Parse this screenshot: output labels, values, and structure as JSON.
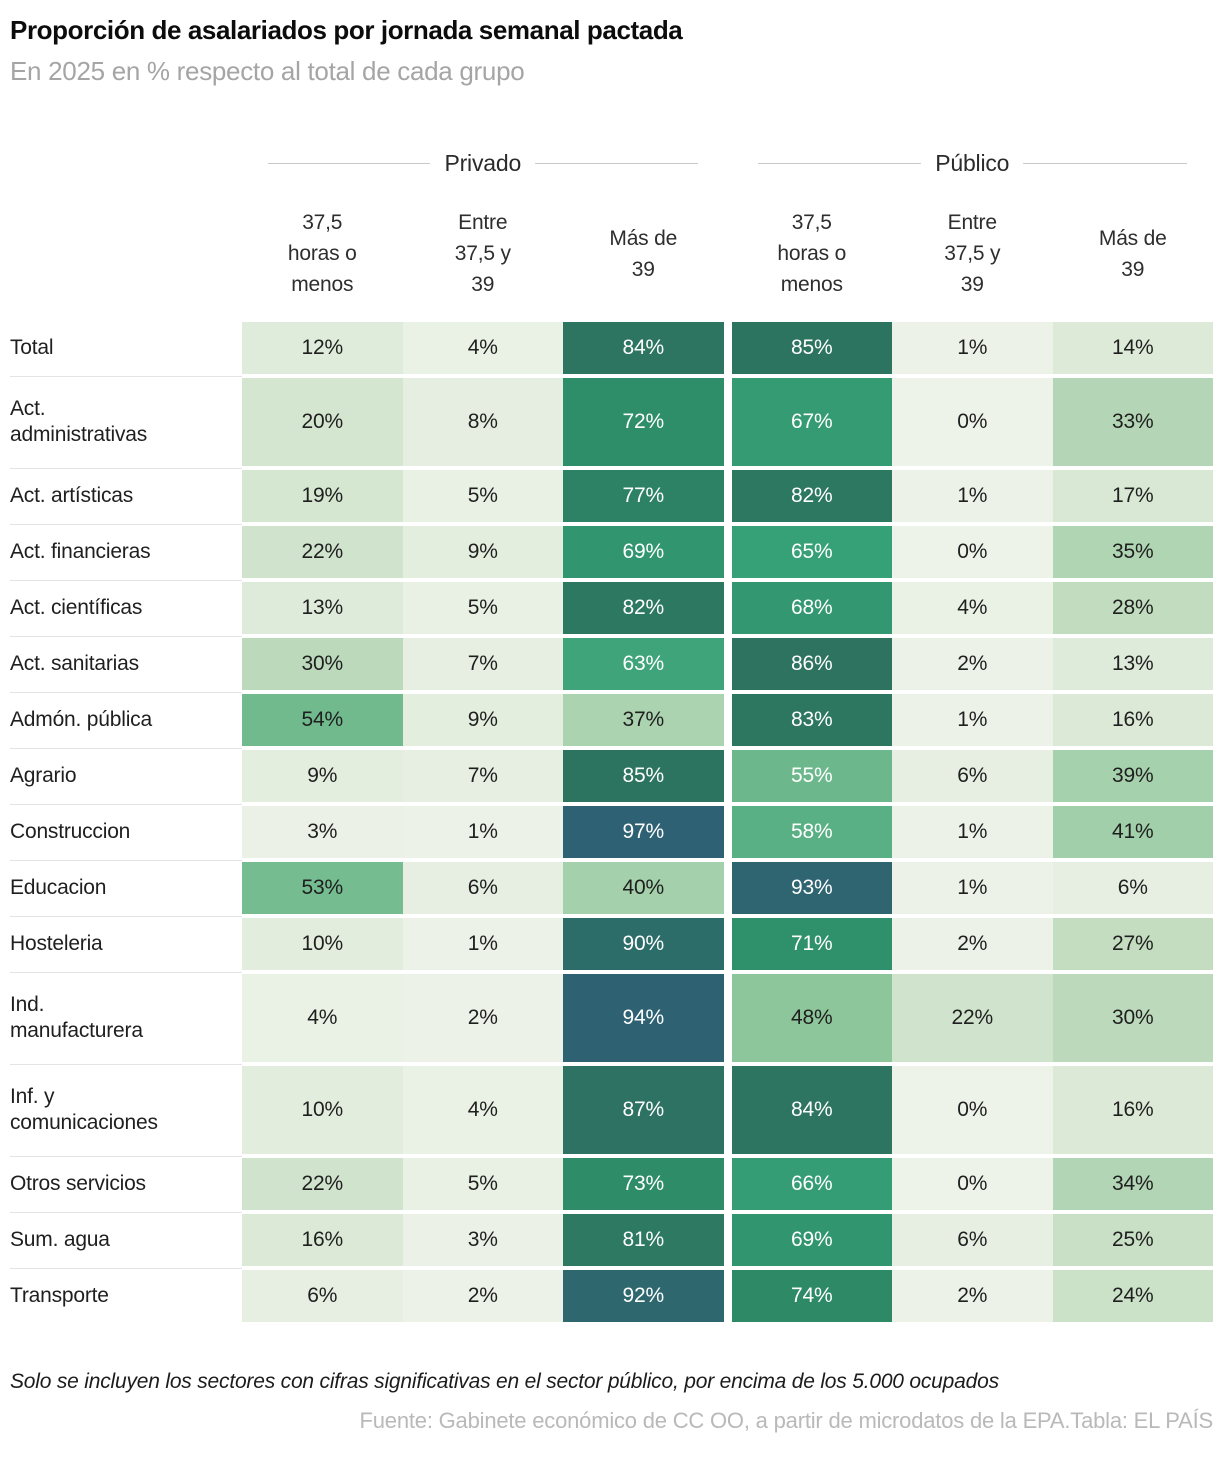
{
  "header": {
    "title": "Proporción de asalariados por jornada semanal pactada",
    "subtitle": "En 2025 en % respecto al total de cada grupo"
  },
  "groups": [
    {
      "label": "Privado"
    },
    {
      "label": "Público"
    }
  ],
  "table": {
    "col_headers": [
      "37,5\nhoras o\nmenos",
      "Entre\n37,5 y\n39",
      "Más de\n39",
      "37,5\nhoras o\nmenos",
      "Entre\n37,5 y\n39",
      "Más de\n39"
    ]
  },
  "chart_data": {
    "type": "heatmap",
    "title": "Proporción de asalariados por jornada semanal pactada",
    "subtitle": "En 2025 en % respecto al total de cada grupo",
    "unit": "%",
    "column_groups": [
      "Privado",
      "Privado",
      "Privado",
      "Público",
      "Público",
      "Público"
    ],
    "columns": [
      "37,5 horas o menos",
      "Entre 37,5 y 39",
      "Más de 39",
      "37,5 horas o menos",
      "Entre 37,5 y 39",
      "Más de 39"
    ],
    "rows": [
      {
        "label": "Total",
        "display": "Total",
        "values": [
          12,
          4,
          84,
          85,
          1,
          14
        ]
      },
      {
        "label": "Act. administrativas",
        "display": "Act.\nadministrativas",
        "values": [
          20,
          8,
          72,
          67,
          0,
          33
        ]
      },
      {
        "label": "Act. artísticas",
        "display": "Act. artísticas",
        "values": [
          19,
          5,
          77,
          82,
          1,
          17
        ]
      },
      {
        "label": "Act. financieras",
        "display": "Act. financieras",
        "values": [
          22,
          9,
          69,
          65,
          0,
          35
        ]
      },
      {
        "label": "Act. científicas",
        "display": "Act. científicas",
        "values": [
          13,
          5,
          82,
          68,
          4,
          28
        ]
      },
      {
        "label": "Act. sanitarias",
        "display": "Act. sanitarias",
        "values": [
          30,
          7,
          63,
          86,
          2,
          13
        ]
      },
      {
        "label": "Admón. pública",
        "display": "Admón. pública",
        "values": [
          54,
          9,
          37,
          83,
          1,
          16
        ]
      },
      {
        "label": "Agrario",
        "display": "Agrario",
        "values": [
          9,
          7,
          85,
          55,
          6,
          39
        ]
      },
      {
        "label": "Construccion",
        "display": "Construccion",
        "values": [
          3,
          1,
          97,
          58,
          1,
          41
        ]
      },
      {
        "label": "Educacion",
        "display": "Educacion",
        "values": [
          53,
          6,
          40,
          93,
          1,
          6
        ]
      },
      {
        "label": "Hosteleria",
        "display": "Hosteleria",
        "values": [
          10,
          1,
          90,
          71,
          2,
          27
        ]
      },
      {
        "label": "Ind. manufacturera",
        "display": "Ind.\nmanufacturera",
        "values": [
          4,
          2,
          94,
          48,
          22,
          30
        ]
      },
      {
        "label": "Inf. y comunicaciones",
        "display": "Inf. y\ncomunicaciones",
        "values": [
          10,
          4,
          87,
          84,
          0,
          16
        ]
      },
      {
        "label": "Otros servicios",
        "display": "Otros servicios",
        "values": [
          22,
          5,
          73,
          66,
          0,
          34
        ]
      },
      {
        "label": "Sum. agua",
        "display": "Sum. agua",
        "values": [
          16,
          3,
          81,
          69,
          6,
          25
        ]
      },
      {
        "label": "Transporte",
        "display": "Transporte",
        "values": [
          6,
          2,
          92,
          74,
          2,
          24
        ]
      }
    ],
    "color_scale": [
      [
        0,
        "#eef3ea"
      ],
      [
        10,
        "#e3edde"
      ],
      [
        20,
        "#d5e6d0"
      ],
      [
        30,
        "#bcd9bb"
      ],
      [
        40,
        "#a4d0ab"
      ],
      [
        48,
        "#8dc69b"
      ],
      [
        55,
        "#6cb88c"
      ],
      [
        60,
        "#4caa7e"
      ],
      [
        65,
        "#36a077"
      ],
      [
        72,
        "#2e8e69"
      ],
      [
        80,
        "#2d7a62"
      ],
      [
        86,
        "#2d7360"
      ],
      [
        90,
        "#2d6d69"
      ],
      [
        94,
        "#2e6273"
      ],
      [
        100,
        "#2f6077"
      ]
    ],
    "text_colors": {
      "dark": "#1f1f1f",
      "light": "#ffffff",
      "light_threshold": 55
    }
  },
  "footer": {
    "note": "Solo se incluyen los sectores con cifras significativas en el sector público, por encima de los 5.000 ocupados",
    "source": "Fuente: Gabinete económico de CC OO, a partir de microdatos de la EPA.",
    "credit": "Tabla: EL PAÍS"
  }
}
